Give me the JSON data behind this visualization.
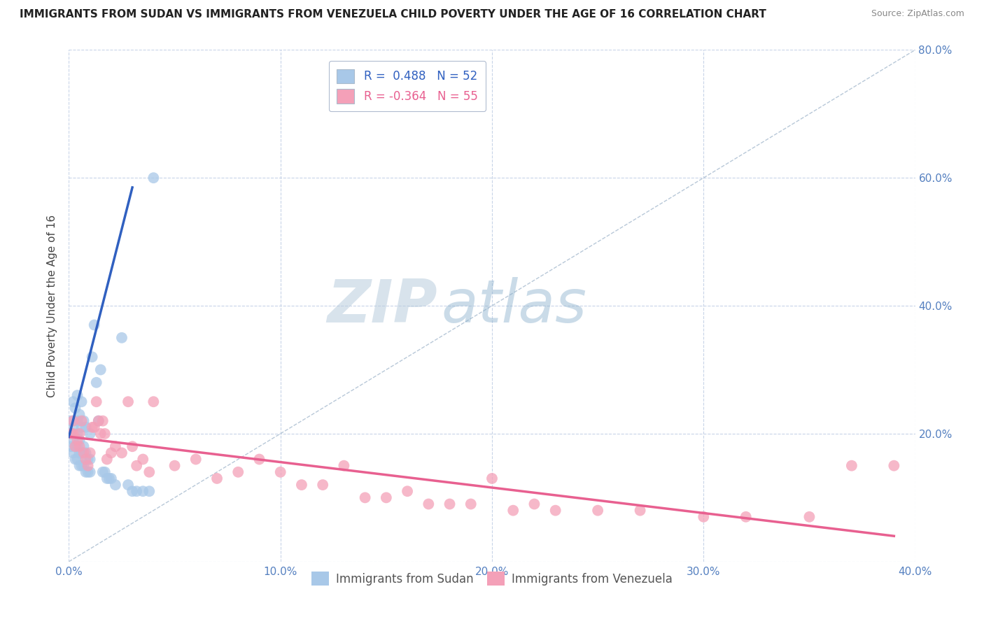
{
  "title": "IMMIGRANTS FROM SUDAN VS IMMIGRANTS FROM VENEZUELA CHILD POVERTY UNDER THE AGE OF 16 CORRELATION CHART",
  "source": "Source: ZipAtlas.com",
  "ylabel": "Child Poverty Under the Age of 16",
  "xlim": [
    0,
    0.4
  ],
  "ylim": [
    0,
    0.8
  ],
  "xticks": [
    0.0,
    0.1,
    0.2,
    0.3,
    0.4
  ],
  "yticks": [
    0.0,
    0.2,
    0.4,
    0.6,
    0.8
  ],
  "sudan_color": "#a8c8e8",
  "venezuela_color": "#f4a0b8",
  "sudan_R": 0.488,
  "sudan_N": 52,
  "venezuela_R": -0.364,
  "venezuela_N": 55,
  "sudan_line_color": "#3060c0",
  "venezuela_line_color": "#e86090",
  "legend_label_sudan": "Immigrants from Sudan",
  "legend_label_venezuela": "Immigrants from Venezuela",
  "watermark_zip": "ZIP",
  "watermark_atlas": "atlas",
  "background_color": "#ffffff",
  "grid_color": "#c8d4e8",
  "sudan_points_x": [
    0.001,
    0.001,
    0.001,
    0.002,
    0.002,
    0.002,
    0.002,
    0.003,
    0.003,
    0.003,
    0.004,
    0.004,
    0.004,
    0.004,
    0.004,
    0.005,
    0.005,
    0.005,
    0.005,
    0.006,
    0.006,
    0.006,
    0.006,
    0.007,
    0.007,
    0.007,
    0.008,
    0.008,
    0.008,
    0.009,
    0.009,
    0.01,
    0.01,
    0.01,
    0.011,
    0.012,
    0.013,
    0.014,
    0.015,
    0.016,
    0.017,
    0.018,
    0.019,
    0.02,
    0.022,
    0.025,
    0.028,
    0.03,
    0.032,
    0.035,
    0.038,
    0.04
  ],
  "sudan_points_y": [
    0.18,
    0.2,
    0.22,
    0.17,
    0.19,
    0.21,
    0.25,
    0.16,
    0.18,
    0.24,
    0.16,
    0.18,
    0.2,
    0.22,
    0.26,
    0.15,
    0.17,
    0.19,
    0.23,
    0.15,
    0.17,
    0.21,
    0.25,
    0.15,
    0.18,
    0.22,
    0.14,
    0.17,
    0.21,
    0.14,
    0.16,
    0.14,
    0.16,
    0.2,
    0.32,
    0.37,
    0.28,
    0.22,
    0.3,
    0.14,
    0.14,
    0.13,
    0.13,
    0.13,
    0.12,
    0.35,
    0.12,
    0.11,
    0.11,
    0.11,
    0.11,
    0.6
  ],
  "venezuela_points_x": [
    0.001,
    0.002,
    0.002,
    0.003,
    0.004,
    0.005,
    0.005,
    0.006,
    0.007,
    0.008,
    0.009,
    0.01,
    0.011,
    0.012,
    0.013,
    0.014,
    0.015,
    0.016,
    0.017,
    0.018,
    0.02,
    0.022,
    0.025,
    0.028,
    0.03,
    0.032,
    0.035,
    0.038,
    0.04,
    0.05,
    0.06,
    0.07,
    0.08,
    0.09,
    0.1,
    0.11,
    0.12,
    0.13,
    0.14,
    0.15,
    0.16,
    0.17,
    0.18,
    0.19,
    0.2,
    0.21,
    0.22,
    0.23,
    0.25,
    0.27,
    0.3,
    0.32,
    0.35,
    0.37,
    0.39
  ],
  "venezuela_points_y": [
    0.2,
    0.2,
    0.22,
    0.18,
    0.19,
    0.18,
    0.2,
    0.22,
    0.17,
    0.16,
    0.15,
    0.17,
    0.21,
    0.21,
    0.25,
    0.22,
    0.2,
    0.22,
    0.2,
    0.16,
    0.17,
    0.18,
    0.17,
    0.25,
    0.18,
    0.15,
    0.16,
    0.14,
    0.25,
    0.15,
    0.16,
    0.13,
    0.14,
    0.16,
    0.14,
    0.12,
    0.12,
    0.15,
    0.1,
    0.1,
    0.11,
    0.09,
    0.09,
    0.09,
    0.13,
    0.08,
    0.09,
    0.08,
    0.08,
    0.08,
    0.07,
    0.07,
    0.07,
    0.15,
    0.15
  ],
  "sudan_trend_x": [
    0.0,
    0.03
  ],
  "sudan_trend_y": [
    0.195,
    0.585
  ],
  "venezuela_trend_x": [
    0.001,
    0.39
  ],
  "venezuela_trend_y": [
    0.195,
    0.04
  ]
}
